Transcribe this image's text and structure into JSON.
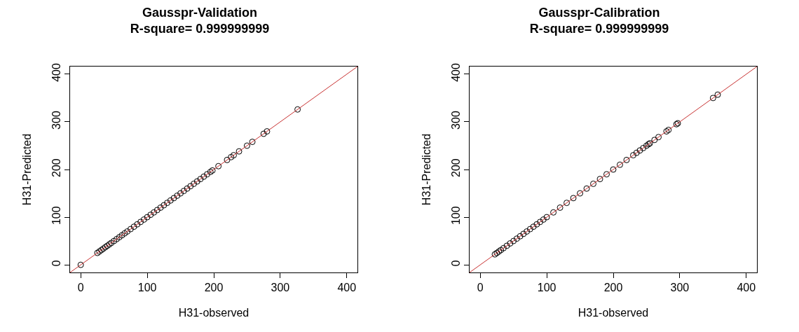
{
  "chart_data": [
    {
      "type": "scatter",
      "title": "Gausspr-Validation",
      "subtitle": "R-square= 0.999999999",
      "xlabel": "H31-observed",
      "ylabel": "H31-Predicted",
      "xlim": [
        -16,
        416
      ],
      "ylim": [
        -16,
        416
      ],
      "xticks": [
        0,
        100,
        200,
        300,
        400
      ],
      "yticks": [
        0,
        100,
        200,
        300,
        400
      ],
      "grid": false,
      "legend": false,
      "series": [
        {
          "marker": "circle",
          "color": "#000000",
          "x": [
            0,
            25,
            28,
            31,
            34,
            37,
            40,
            43,
            46,
            50,
            54,
            58,
            62,
            66,
            70,
            75,
            80,
            85,
            90,
            95,
            100,
            105,
            110,
            115,
            120,
            125,
            130,
            135,
            140,
            145,
            150,
            155,
            160,
            165,
            170,
            175,
            180,
            185,
            190,
            195,
            198,
            207,
            220,
            226,
            230,
            238,
            250,
            258,
            275,
            280,
            326
          ],
          "values": [
            0,
            25,
            28,
            31,
            34,
            37,
            40,
            43,
            46,
            50,
            54,
            58,
            62,
            66,
            70,
            75,
            80,
            85,
            90,
            95,
            100,
            105,
            110,
            115,
            120,
            125,
            130,
            135,
            140,
            145,
            150,
            155,
            160,
            165,
            170,
            175,
            180,
            185,
            190,
            195,
            198,
            207,
            220,
            226,
            230,
            238,
            250,
            258,
            275,
            280,
            326
          ]
        },
        {
          "type": "line",
          "color": "#c83232",
          "line_style": "solid",
          "x": [
            -16,
            416
          ],
          "values": [
            -16,
            416
          ]
        }
      ]
    },
    {
      "type": "scatter",
      "title": "Gausspr-Calibration",
      "subtitle": "R-square= 0.999999999",
      "xlabel": "H31-observed",
      "ylabel": "H31-Predicted",
      "xlim": [
        -16,
        416
      ],
      "ylim": [
        -16,
        416
      ],
      "xticks": [
        0,
        100,
        200,
        300,
        400
      ],
      "yticks": [
        0,
        100,
        200,
        300,
        400
      ],
      "grid": false,
      "legend": false,
      "series": [
        {
          "marker": "circle",
          "color": "#000000",
          "x": [
            22,
            25,
            28,
            31,
            35,
            40,
            45,
            50,
            55,
            60,
            65,
            70,
            75,
            80,
            85,
            90,
            95,
            100,
            110,
            120,
            130,
            140,
            150,
            160,
            170,
            180,
            190,
            200,
            210,
            220,
            230,
            235,
            240,
            245,
            250,
            253,
            255,
            262,
            268,
            280,
            283,
            295,
            297,
            350,
            357
          ],
          "values": [
            22,
            25,
            28,
            31,
            35,
            40,
            45,
            50,
            55,
            60,
            65,
            70,
            75,
            80,
            85,
            90,
            95,
            100,
            110,
            120,
            130,
            140,
            150,
            160,
            170,
            180,
            190,
            200,
            210,
            220,
            230,
            235,
            240,
            245,
            250,
            253,
            255,
            262,
            268,
            280,
            283,
            295,
            297,
            350,
            357
          ]
        },
        {
          "type": "line",
          "color": "#c83232",
          "line_style": "solid",
          "x": [
            -16,
            416
          ],
          "values": [
            -16,
            416
          ]
        }
      ]
    }
  ]
}
